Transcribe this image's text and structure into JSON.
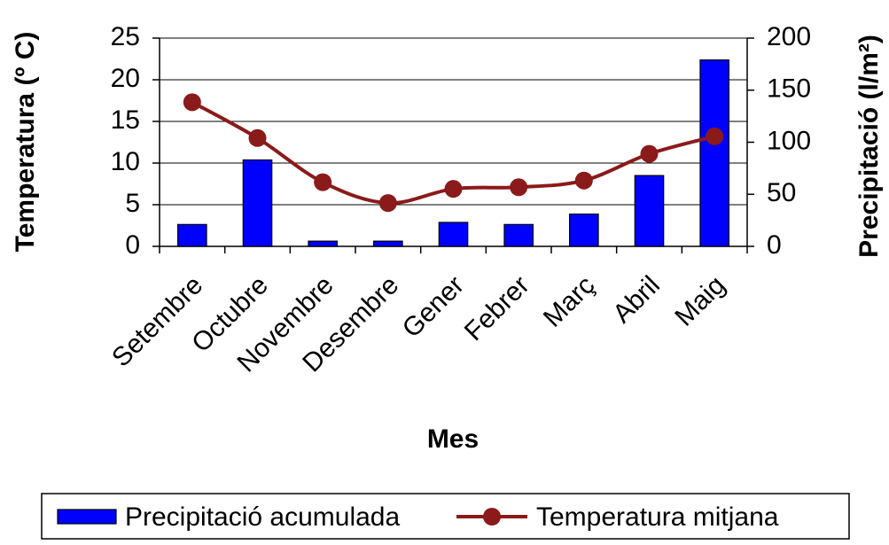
{
  "chart_data": {
    "type": "bar-line",
    "x_label": "Mes",
    "y_label": "Temperatura (º C)",
    "y2_label": "Precipitació (l/m²)",
    "categories": [
      "Setembre",
      "Octubre",
      "Novembre",
      "Desembre",
      "Gener",
      "Febrer",
      "Març",
      "Abril",
      "Maig"
    ],
    "series": [
      {
        "name": "Precipitació acumulada",
        "type": "bar",
        "axis": "y2",
        "color": "#0000ff",
        "values": [
          21,
          83,
          5,
          5,
          23,
          21,
          31,
          68,
          179
        ]
      },
      {
        "name": "Temperatura mitjana",
        "type": "line",
        "axis": "y",
        "color": "#8b1a1a",
        "values": [
          17.3,
          13,
          7.7,
          5.2,
          6.9,
          7.1,
          7.9,
          11.1,
          13.2
        ]
      }
    ],
    "ylim": [
      0,
      25
    ],
    "yticks": [
      0,
      5,
      10,
      15,
      20,
      25
    ],
    "y2lim": [
      0,
      200
    ],
    "y2ticks": [
      0,
      50,
      100,
      150,
      200
    ],
    "grid": true,
    "legend": "bottom"
  }
}
